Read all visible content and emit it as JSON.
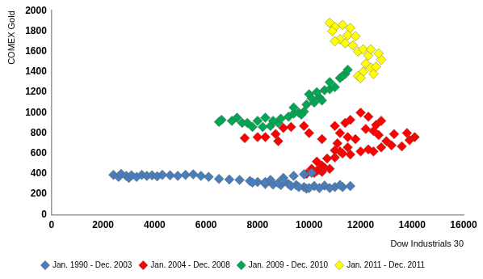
{
  "chart_data": {
    "type": "scatter",
    "x_label": "Dow Industrials 30",
    "y_label": "COMEX Gold",
    "xlim": [
      0,
      16000
    ],
    "xticks": [
      0,
      2000,
      4000,
      6000,
      8000,
      10000,
      12000,
      14000,
      16000
    ],
    "ylim": [
      0,
      2000
    ],
    "yticks": [
      0,
      200,
      400,
      600,
      800,
      1000,
      1200,
      1400,
      1600,
      1800,
      2000
    ],
    "grid": false,
    "legend": "bottom",
    "marker": "diamond",
    "series": [
      {
        "name": "Jan. 1990 - Dec. 2003",
        "color": "#4a7ebb",
        "x": [
          2400,
          2600,
          2700,
          2900,
          3000,
          3100,
          3300,
          3500,
          3700,
          3900,
          4100,
          4300,
          4600,
          4900,
          5200,
          5500,
          5800,
          6100,
          6500,
          6900,
          7300,
          7700,
          8000,
          8300,
          8600,
          8900,
          9200,
          9500,
          9800,
          10200,
          10600,
          11000,
          11300,
          11600,
          10800,
          10400,
          9900,
          9600,
          9300,
          8800,
          8300,
          7800,
          8500,
          9000,
          9400,
          9800,
          10100,
          9000,
          10000,
          11200
        ],
        "values": [
          390,
          370,
          400,
          380,
          360,
          385,
          370,
          390,
          380,
          385,
          375,
          390,
          385,
          380,
          390,
          395,
          380,
          370,
          350,
          345,
          340,
          330,
          320,
          300,
          295,
          290,
          300,
          290,
          270,
          280,
          285,
          270,
          270,
          280,
          260,
          260,
          255,
          270,
          280,
          310,
          320,
          315,
          340,
          360,
          380,
          395,
          410,
          330,
          260,
          290
        ]
      },
      {
        "name": "Jan. 2004 - Dec. 2008",
        "color": "#ff0000",
        "x": [
          9900,
          10200,
          10500,
          10400,
          10100,
          10300,
          10600,
          10800,
          10500,
          10300,
          10700,
          11000,
          11200,
          11500,
          11300,
          11000,
          11600,
          12000,
          12300,
          12500,
          12800,
          13200,
          13600,
          13900,
          14100,
          13800,
          13300,
          13000,
          12700,
          12500,
          12200,
          12600,
          12800,
          12300,
          12000,
          11600,
          11400,
          11000,
          11200,
          11500,
          11800,
          11100,
          10500,
          10000,
          9800,
          9300,
          9000,
          8700,
          8300,
          8000,
          7500,
          8800
        ],
        "values": [
          400,
          410,
          420,
          440,
          450,
          430,
          460,
          450,
          480,
          520,
          550,
          560,
          620,
          660,
          600,
          630,
          590,
          620,
          640,
          620,
          660,
          680,
          670,
          730,
          760,
          800,
          790,
          720,
          780,
          820,
          840,
          880,
          920,
          960,
          1000,
          930,
          900,
          870,
          800,
          760,
          740,
          700,
          740,
          800,
          870,
          860,
          850,
          790,
          760,
          760,
          750,
          720
        ]
      },
      {
        "name": "Jan. 2009 - Dec. 2010",
        "color": "#00a651",
        "x": [
          8500,
          8800,
          8200,
          7800,
          7400,
          7000,
          6600,
          6500,
          7200,
          7600,
          8000,
          8300,
          8600,
          8900,
          9200,
          9400,
          9600,
          9800,
          9700,
          9400,
          9900,
          10200,
          10400,
          10300,
          10000,
          10600,
          10800,
          11000,
          10800,
          11200,
          11400,
          11500,
          11300,
          10500,
          10100
        ],
        "values": [
          870,
          900,
          860,
          860,
          900,
          920,
          930,
          910,
          950,
          900,
          920,
          950,
          920,
          940,
          960,
          990,
          1000,
          1010,
          980,
          1050,
          1080,
          1100,
          1150,
          1200,
          1180,
          1220,
          1230,
          1250,
          1300,
          1340,
          1380,
          1420,
          1360,
          1120,
          1140
        ]
      },
      {
        "name": "Jan. 2011 - Dec. 2011",
        "color": "#ffff00",
        "x": [
          10800,
          11000,
          10900,
          11300,
          11600,
          11500,
          11200,
          11000,
          11400,
          11800,
          11700,
          11900,
          12100,
          12300,
          12200,
          12400,
          12600,
          12800,
          12700,
          12400,
          12100,
          11900,
          12000,
          12500
        ],
        "values": [
          1880,
          1840,
          1800,
          1860,
          1830,
          1760,
          1720,
          1700,
          1680,
          1750,
          1660,
          1600,
          1620,
          1560,
          1480,
          1440,
          1450,
          1520,
          1580,
          1620,
          1400,
          1360,
          1340,
          1380
        ]
      }
    ]
  }
}
